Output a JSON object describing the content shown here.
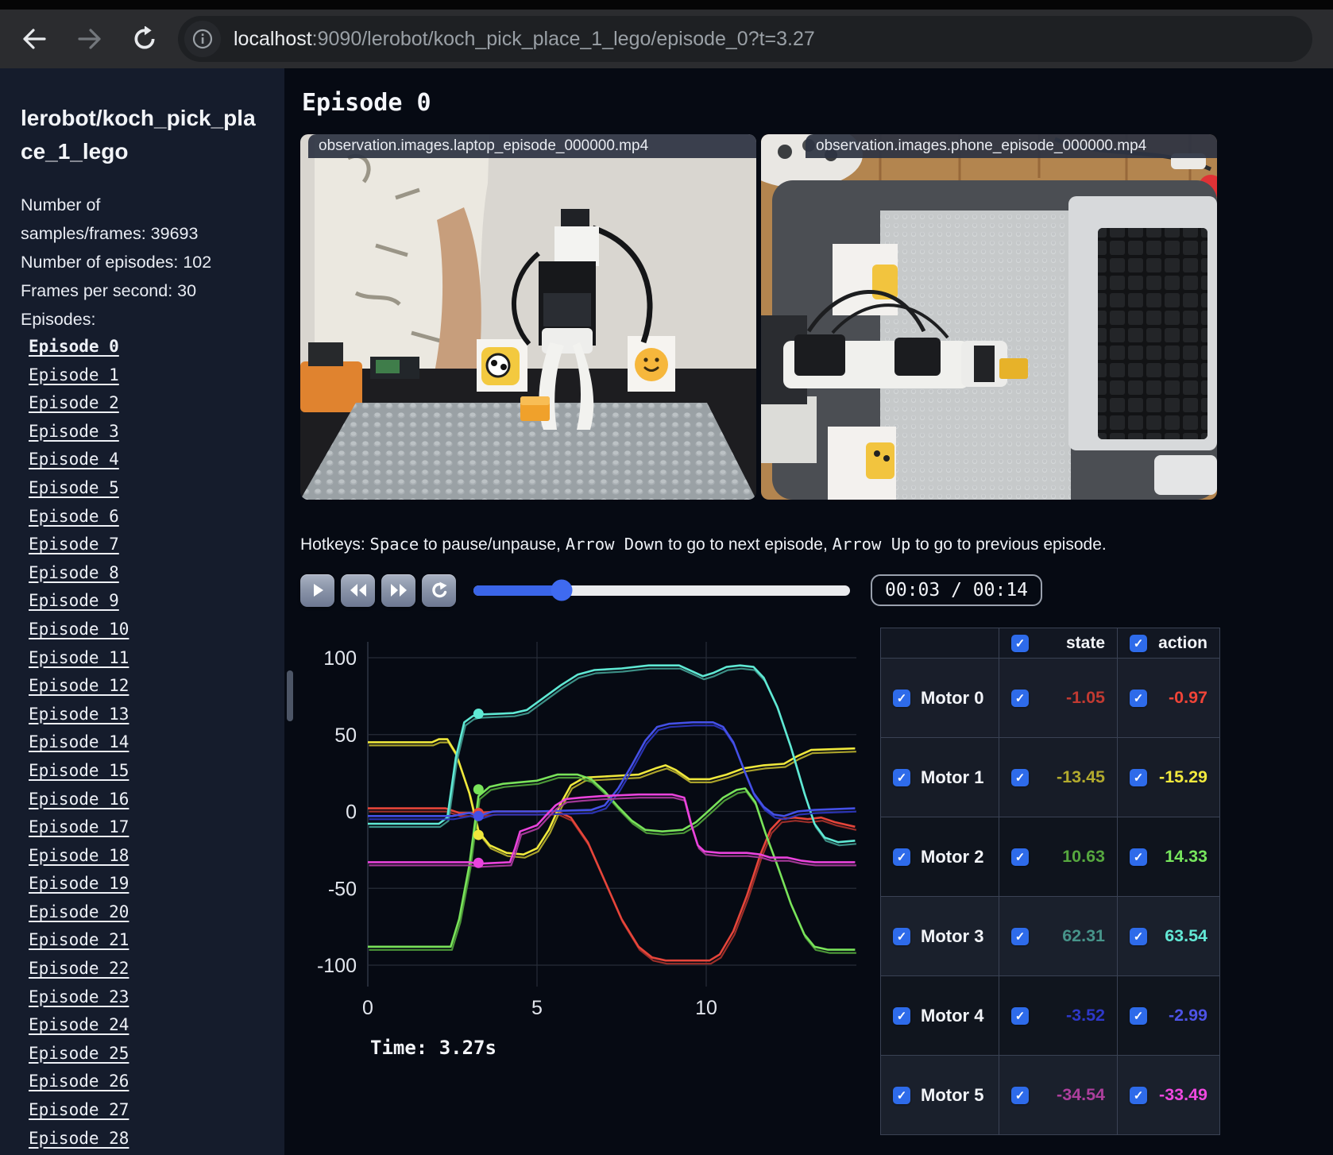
{
  "browser": {
    "url_host": "localhost",
    "url_rest": ":9090/lerobot/koch_pick_place_1_lego/episode_0?t=3.27"
  },
  "sidebar": {
    "title": "lerobot/koch_pick_place_1_lego",
    "stats": [
      "Number of samples/frames: 39693",
      "Number of episodes: 102",
      "Frames per second: 30"
    ],
    "episodes_label": "Episodes:",
    "active_episode": "Episode 0",
    "episodes": [
      "Episode 0",
      "Episode 1",
      "Episode 2",
      "Episode 3",
      "Episode 4",
      "Episode 5",
      "Episode 6",
      "Episode 7",
      "Episode 8",
      "Episode 9",
      "Episode 10",
      "Episode 11",
      "Episode 12",
      "Episode 13",
      "Episode 14",
      "Episode 15",
      "Episode 16",
      "Episode 17",
      "Episode 18",
      "Episode 19",
      "Episode 20",
      "Episode 21",
      "Episode 22",
      "Episode 23",
      "Episode 24",
      "Episode 25",
      "Episode 26",
      "Episode 27",
      "Episode 28"
    ]
  },
  "main": {
    "title": "Episode 0",
    "videos": [
      {
        "caption": "observation.images.laptop_episode_000000.mp4"
      },
      {
        "caption": "observation.images.phone_episode_000000.mp4"
      }
    ],
    "hotkeys_segments": [
      {
        "text": "Hotkeys: ",
        "mono": false
      },
      {
        "text": "Space",
        "mono": true
      },
      {
        "text": " to pause/unpause, ",
        "mono": false
      },
      {
        "text": "Arrow Down",
        "mono": true
      },
      {
        "text": " to go to next episode, ",
        "mono": false
      },
      {
        "text": "Arrow Up",
        "mono": true
      },
      {
        "text": " to go to previous episode.",
        "mono": false
      }
    ],
    "controls": {
      "time_display": "00:03 / 00:14",
      "progress": 0.234
    }
  },
  "chart_data": {
    "type": "line",
    "title": "",
    "xlabel": "",
    "ylabel": "",
    "x_ticks": [
      0,
      5,
      10
    ],
    "y_ticks": [
      100,
      50,
      0,
      -50,
      -100
    ],
    "xlim": [
      0,
      14.4
    ],
    "ylim": [
      -100,
      100
    ],
    "grid": true,
    "legend": "none",
    "current_time": 3.27,
    "time_label": "Time: 3.27s",
    "series": [
      {
        "name": "Motor 0",
        "state_color": "#a3302a",
        "action_color": "#e6453a",
        "value_at_t": -0.97,
        "points": [
          [
            0,
            2
          ],
          [
            1.5,
            2
          ],
          [
            2.3,
            2
          ],
          [
            2.7,
            -1
          ],
          [
            3.27,
            -1
          ],
          [
            3.8,
            0
          ],
          [
            5.6,
            0
          ],
          [
            6.0,
            -4
          ],
          [
            6.5,
            -20
          ],
          [
            7.0,
            -45
          ],
          [
            7.5,
            -70
          ],
          [
            8.0,
            -88
          ],
          [
            8.4,
            -95
          ],
          [
            8.8,
            -97
          ],
          [
            10.1,
            -97
          ],
          [
            10.4,
            -93
          ],
          [
            10.8,
            -78
          ],
          [
            11.2,
            -55
          ],
          [
            11.6,
            -28
          ],
          [
            11.9,
            -12
          ],
          [
            12.2,
            -5
          ],
          [
            12.6,
            -4
          ],
          [
            13.0,
            -5
          ],
          [
            13.4,
            -4
          ],
          [
            13.8,
            -7
          ],
          [
            14.4,
            -10
          ]
        ]
      },
      {
        "name": "Motor 1",
        "state_color": "#b2aa2c",
        "action_color": "#efe83c",
        "value_at_t": -15.29,
        "points": [
          [
            0,
            45
          ],
          [
            1.9,
            45
          ],
          [
            2.1,
            47
          ],
          [
            2.35,
            47
          ],
          [
            2.6,
            38
          ],
          [
            3.0,
            12
          ],
          [
            3.27,
            -13
          ],
          [
            3.6,
            -22
          ],
          [
            4.1,
            -27
          ],
          [
            4.6,
            -28
          ],
          [
            5.0,
            -24
          ],
          [
            5.35,
            -12
          ],
          [
            5.7,
            5
          ],
          [
            6.0,
            17
          ],
          [
            6.4,
            22
          ],
          [
            7.2,
            23
          ],
          [
            8.0,
            24
          ],
          [
            8.5,
            28
          ],
          [
            8.8,
            30
          ],
          [
            9.1,
            27
          ],
          [
            9.5,
            21
          ],
          [
            10.1,
            21
          ],
          [
            10.6,
            24
          ],
          [
            11.1,
            28
          ],
          [
            11.7,
            30
          ],
          [
            12.3,
            31
          ],
          [
            12.7,
            36
          ],
          [
            13.1,
            40
          ],
          [
            14.4,
            41
          ]
        ]
      },
      {
        "name": "Motor 2",
        "state_color": "#4f9e3a",
        "action_color": "#79e35a",
        "value_at_t": 14.33,
        "points": [
          [
            0,
            -88
          ],
          [
            2.45,
            -88
          ],
          [
            2.7,
            -70
          ],
          [
            3.0,
            -35
          ],
          [
            3.27,
            10
          ],
          [
            3.6,
            16
          ],
          [
            4.0,
            18
          ],
          [
            5.0,
            20
          ],
          [
            5.6,
            24
          ],
          [
            6.2,
            24
          ],
          [
            6.6,
            21
          ],
          [
            7.0,
            13
          ],
          [
            7.4,
            3
          ],
          [
            7.8,
            -6
          ],
          [
            8.2,
            -12
          ],
          [
            8.7,
            -13
          ],
          [
            9.3,
            -12
          ],
          [
            9.7,
            -7
          ],
          [
            10.1,
            1
          ],
          [
            10.5,
            9
          ],
          [
            10.9,
            14
          ],
          [
            11.15,
            15
          ],
          [
            11.45,
            6
          ],
          [
            11.75,
            -14
          ],
          [
            12.1,
            -35
          ],
          [
            12.5,
            -60
          ],
          [
            12.9,
            -80
          ],
          [
            13.2,
            -88
          ],
          [
            13.6,
            -90
          ],
          [
            14.4,
            -90
          ]
        ]
      },
      {
        "name": "Motor 3",
        "state_color": "#3f968b",
        "action_color": "#5fe9d4",
        "value_at_t": 63.54,
        "points": [
          [
            0,
            -8
          ],
          [
            2.1,
            -8
          ],
          [
            2.35,
            -4
          ],
          [
            2.6,
            35
          ],
          [
            2.85,
            58
          ],
          [
            3.1,
            62
          ],
          [
            3.27,
            63
          ],
          [
            4.3,
            64
          ],
          [
            4.7,
            66
          ],
          [
            5.2,
            74
          ],
          [
            5.7,
            82
          ],
          [
            6.2,
            89
          ],
          [
            6.7,
            92
          ],
          [
            7.5,
            93
          ],
          [
            8.3,
            95
          ],
          [
            9.2,
            95
          ],
          [
            9.6,
            91
          ],
          [
            9.9,
            88
          ],
          [
            10.2,
            90
          ],
          [
            10.6,
            94
          ],
          [
            11.0,
            95
          ],
          [
            11.4,
            94
          ],
          [
            11.7,
            87
          ],
          [
            12.1,
            68
          ],
          [
            12.5,
            42
          ],
          [
            12.9,
            12
          ],
          [
            13.2,
            -8
          ],
          [
            13.5,
            -17
          ],
          [
            13.9,
            -20
          ],
          [
            14.4,
            -19
          ]
        ]
      },
      {
        "name": "Motor 4",
        "state_color": "#2c35b8",
        "action_color": "#4450e6",
        "value_at_t": -2.99,
        "points": [
          [
            0,
            -3
          ],
          [
            2.5,
            -3
          ],
          [
            3.0,
            -1
          ],
          [
            3.27,
            -3
          ],
          [
            3.7,
            0
          ],
          [
            5.0,
            0
          ],
          [
            6.6,
            1
          ],
          [
            7.0,
            4
          ],
          [
            7.4,
            15
          ],
          [
            7.8,
            30
          ],
          [
            8.2,
            46
          ],
          [
            8.55,
            55
          ],
          [
            8.9,
            57
          ],
          [
            9.6,
            58
          ],
          [
            10.2,
            58
          ],
          [
            10.5,
            55
          ],
          [
            10.8,
            45
          ],
          [
            11.1,
            28
          ],
          [
            11.4,
            12
          ],
          [
            11.7,
            3
          ],
          [
            12.0,
            -2
          ],
          [
            12.3,
            -3
          ],
          [
            12.7,
            0
          ],
          [
            13.2,
            1
          ],
          [
            14.4,
            2
          ]
        ]
      },
      {
        "name": "Motor 5",
        "state_color": "#a93a9c",
        "action_color": "#ea43dc",
        "value_at_t": -33.49,
        "points": [
          [
            0,
            -33
          ],
          [
            3.0,
            -33
          ],
          [
            3.27,
            -34
          ],
          [
            4.2,
            -33
          ],
          [
            4.35,
            -24
          ],
          [
            4.5,
            -13
          ],
          [
            4.75,
            -11
          ],
          [
            5.0,
            -9
          ],
          [
            5.25,
            -3
          ],
          [
            5.55,
            4
          ],
          [
            5.85,
            8
          ],
          [
            6.3,
            9
          ],
          [
            6.9,
            10
          ],
          [
            8.0,
            11
          ],
          [
            9.0,
            11
          ],
          [
            9.35,
            9
          ],
          [
            9.55,
            -8
          ],
          [
            9.75,
            -22
          ],
          [
            9.95,
            -26
          ],
          [
            10.4,
            -27
          ],
          [
            11.2,
            -27
          ],
          [
            11.6,
            -28
          ],
          [
            11.9,
            -30
          ],
          [
            12.4,
            -30
          ],
          [
            12.8,
            -32
          ],
          [
            13.2,
            -33
          ],
          [
            14.4,
            -33
          ]
        ]
      }
    ]
  },
  "table": {
    "state_label": "state",
    "action_label": "action",
    "rows": [
      {
        "label": "Motor 0",
        "state": "-1.05",
        "action": "-0.97",
        "state_color": "#c23a32",
        "action_color": "#f04438"
      },
      {
        "label": "Motor 1",
        "state": "-13.45",
        "action": "-15.29",
        "state_color": "#b3ab2e",
        "action_color": "#f2ea3e"
      },
      {
        "label": "Motor 2",
        "state": "10.63",
        "action": "14.33",
        "state_color": "#56a83f",
        "action_color": "#77e65d"
      },
      {
        "label": "Motor 3",
        "state": "62.31",
        "action": "63.54",
        "state_color": "#47948a",
        "action_color": "#63e9d6"
      },
      {
        "label": "Motor 4",
        "state": "-3.52",
        "action": "-2.99",
        "state_color": "#2e38c9",
        "action_color": "#4d53e6"
      },
      {
        "label": "Motor 5",
        "state": "-34.54",
        "action": "-33.49",
        "state_color": "#ad3f9d",
        "action_color": "#ef49df"
      }
    ]
  }
}
